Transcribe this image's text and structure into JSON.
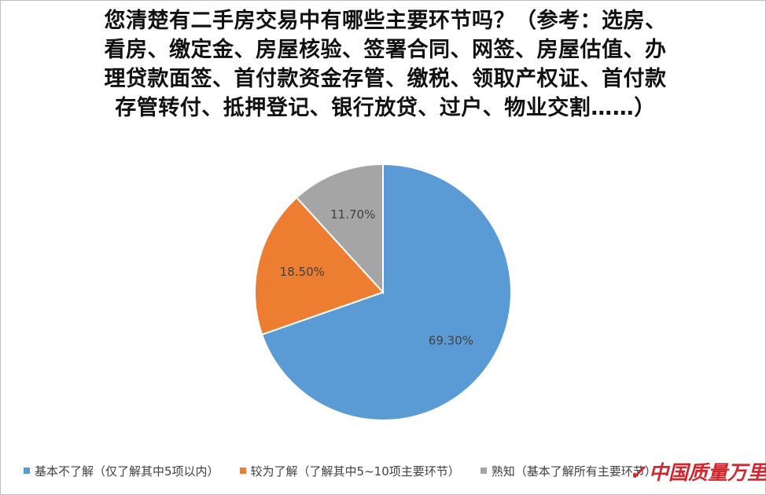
{
  "title_lines": [
    "您清楚有二手房交易中有哪些主要环节吗？（参考：选房、",
    "看房、缴定金、房屋核验、签署合同、网签、房屋估值、办",
    "理贷款面签、首付款资金存管、缴税、领取产权证、首付款",
    "存管转付、抵押登记、银行放贷、过户、物业交割……）"
  ],
  "chart_data": {
    "type": "pie",
    "title": "您清楚有二手房交易中有哪些主要环节吗？（参考：选房、看房、缴定金、房屋核验、签署合同、网签、房屋估值、办理贷款面签、首付款资金存管、缴税、领取产权证、首付款存管转付、抵押登记、银行放贷、过户、物业交割……）",
    "categories": [
      "基本不了解（仅了解其中5项以内）",
      "较为了解（了解其中5~10项主要环节）",
      "熟知（基本了解所有主要环节）"
    ],
    "values": [
      69.3,
      18.5,
      11.7
    ],
    "labels": [
      "69.30%",
      "18.50%",
      "11.70%"
    ],
    "colors": [
      "#5b9bd5",
      "#ed7d31",
      "#a5a5a5"
    ],
    "legend_position": "bottom"
  },
  "legend": [
    {
      "label": "基本不了解（仅了解其中5项以内）",
      "color": "#5b9bd5"
    },
    {
      "label": "较为了解（了解其中5~10项主要环节）",
      "color": "#ed7d31"
    },
    {
      "label": "熟知（基本了解所有主要环节）",
      "color": "#a5a5a5"
    }
  ],
  "watermark": "中国质量万里行"
}
